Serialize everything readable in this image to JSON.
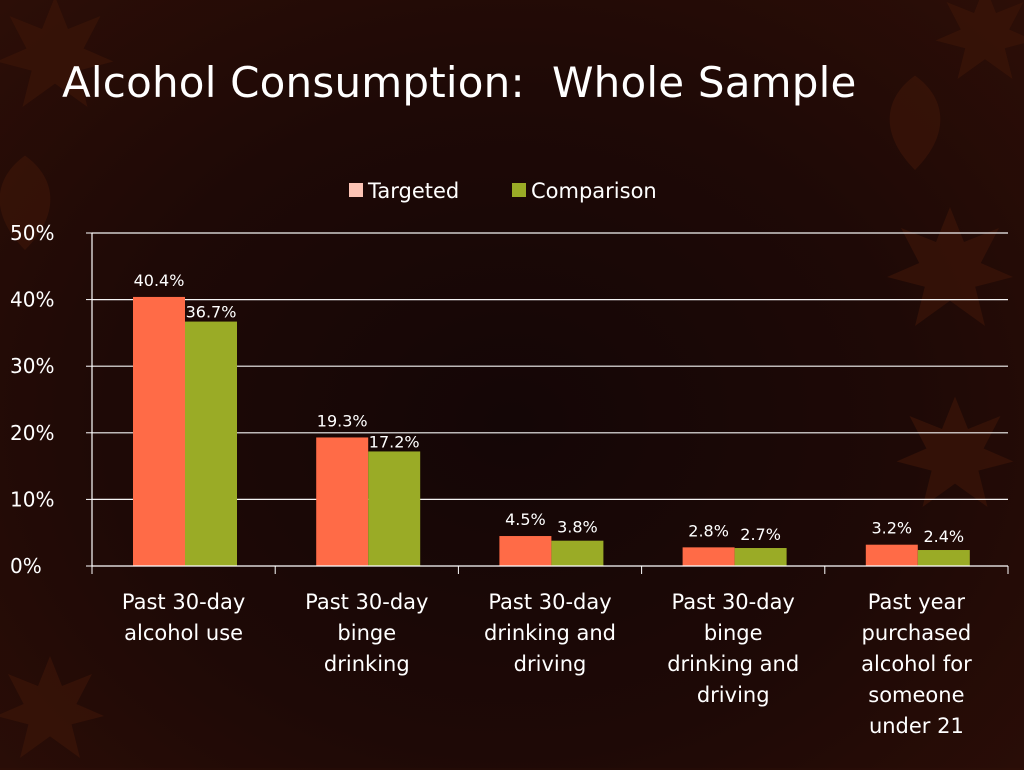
{
  "slide": {
    "title": "Alcohol Consumption:  Whole Sample"
  },
  "chart_data": {
    "type": "bar",
    "title": "",
    "xlabel": "",
    "ylabel": "",
    "ylim": [
      0,
      50
    ],
    "yticks": [
      "0%",
      "10%",
      "20%",
      "30%",
      "40%",
      "50%"
    ],
    "grid": true,
    "legend_position": "top",
    "categories": [
      [
        "Past 30-day",
        "alcohol use"
      ],
      [
        "Past 30-day",
        "binge",
        "drinking"
      ],
      [
        "Past 30-day",
        "drinking and",
        "driving"
      ],
      [
        "Past 30-day",
        "binge",
        "drinking and",
        "driving"
      ],
      [
        "Past year",
        "purchased",
        "alcohol for",
        "someone",
        "under 21"
      ]
    ],
    "series": [
      {
        "name": "Targeted",
        "color": "#ff6b47",
        "values": [
          40.4,
          19.3,
          4.5,
          2.8,
          3.2
        ],
        "labels": [
          "40.4%",
          "19.3%",
          "4.5%",
          "2.8%",
          "3.2%"
        ]
      },
      {
        "name": "Comparison",
        "color": "#9aab26",
        "values": [
          36.7,
          17.2,
          3.8,
          2.7,
          2.4
        ],
        "labels": [
          "36.7%",
          "17.2%",
          "3.8%",
          "2.7%",
          "2.4%"
        ]
      }
    ],
    "legend_swatch_colors": [
      "#fcc3b4",
      "#9aab26"
    ]
  }
}
